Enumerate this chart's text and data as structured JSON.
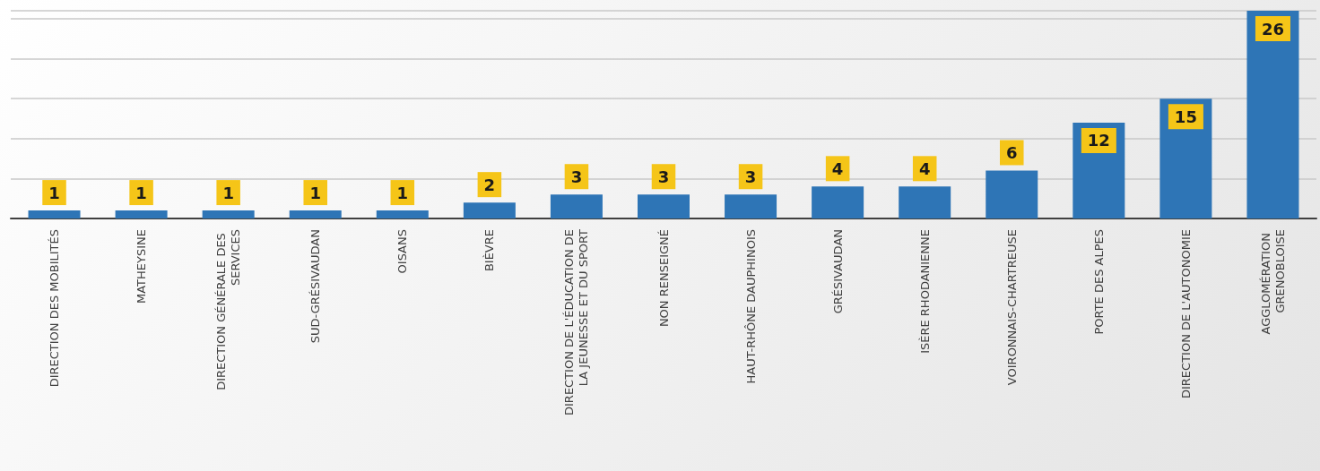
{
  "chart_data": {
    "type": "bar",
    "categories": [
      "DIRECTION DES MOBILITÉS",
      "MATHEYSINE",
      "DIRECTION GÉNÉRALE DES SERVICES",
      "SUD-GRÉSIVAUDAN",
      "OISANS",
      "BIÈVRE",
      "DIRECTION DE L'ÉDUCATION DE LA JEUNESSE ET DU SPORT",
      "NON RENSEIGNÉ",
      "HAUT-RHÔNE DAUPHINOIS",
      "GRÉSIVAUDAN",
      "ISÈRE RHODANIENNE",
      "VOIRONNAIS-CHARTREUSE",
      "PORTE DES ALPES",
      "DIRECTION DE L'AUTONOMIE",
      "AGGLOMÉRATION GRENOBLOISE"
    ],
    "values": [
      1,
      1,
      1,
      1,
      1,
      2,
      3,
      3,
      3,
      4,
      4,
      6,
      12,
      15,
      26
    ],
    "color": "#2e75b6",
    "grid": "y",
    "data_labels": true
  }
}
